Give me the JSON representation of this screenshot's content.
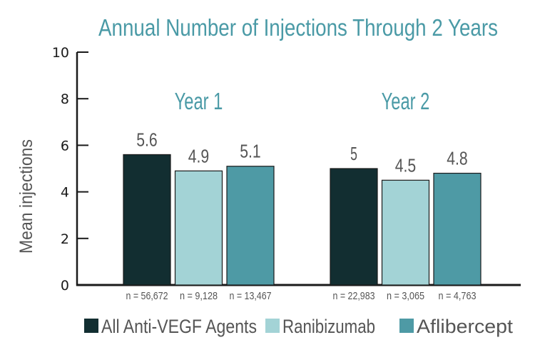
{
  "chart_data": {
    "type": "bar",
    "title": "Annual Number of Injections Through 2 Years",
    "ylabel": "Mean injections",
    "ylim": [
      0,
      10
    ],
    "yticks": [
      0,
      2,
      4,
      6,
      8,
      10
    ],
    "grid": false,
    "legend_position": "bottom",
    "categories": [
      "Year 1",
      "Year 2"
    ],
    "series": [
      {
        "name": "All Anti-VEGF Agents",
        "color": "#122e31",
        "values": [
          5.6,
          5
        ],
        "value_labels": [
          "5.6",
          "5"
        ],
        "n_labels": [
          "n = 56,672",
          "n = 22,983"
        ]
      },
      {
        "name": "Ranibizumab",
        "color": "#a3d3d6",
        "values": [
          4.9,
          4.5
        ],
        "value_labels": [
          "4.9",
          "4.5"
        ],
        "n_labels": [
          "n = 9,128",
          "n = 3,065"
        ]
      },
      {
        "name": "Aflibercept",
        "color": "#4e9aa5",
        "values": [
          5.1,
          4.8
        ],
        "value_labels": [
          "5.1",
          "4.8"
        ],
        "n_labels": [
          "n = 13,467",
          "n = 4,763"
        ]
      }
    ]
  }
}
